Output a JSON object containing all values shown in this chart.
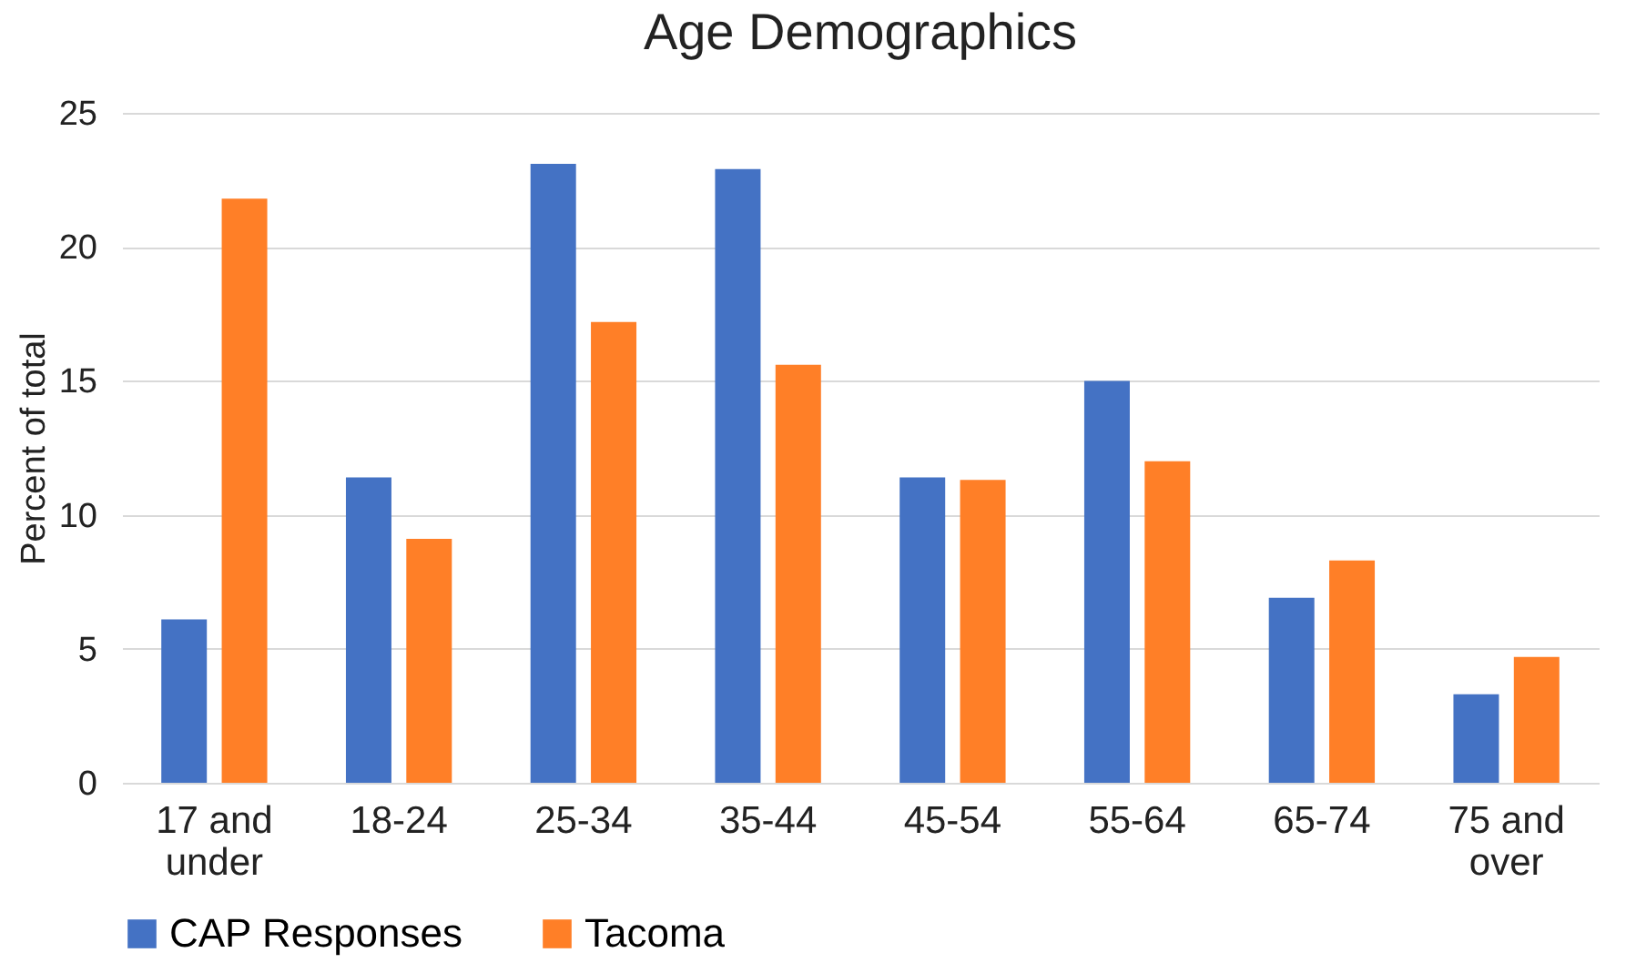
{
  "chart_data": {
    "type": "bar",
    "title": "Age Demographics",
    "ylabel": "Percent of total",
    "categories": [
      "17 and under",
      "18-24",
      "25-34",
      "35-44",
      "45-54",
      "55-64",
      "65-74",
      "75 and over"
    ],
    "series": [
      {
        "name": "CAP Responses",
        "color": "#4472c4",
        "values": [
          6.1,
          11.4,
          23.1,
          22.9,
          11.4,
          15.0,
          6.9,
          3.3
        ]
      },
      {
        "name": "Tacoma",
        "color": "#ff7f27",
        "values": [
          21.8,
          9.1,
          17.2,
          15.6,
          11.3,
          12.0,
          8.3,
          4.7
        ]
      }
    ],
    "ylim": [
      0,
      25
    ],
    "yticks": [
      0,
      5,
      10,
      15,
      20,
      25
    ],
    "grid": "y",
    "legend": "bottom"
  }
}
